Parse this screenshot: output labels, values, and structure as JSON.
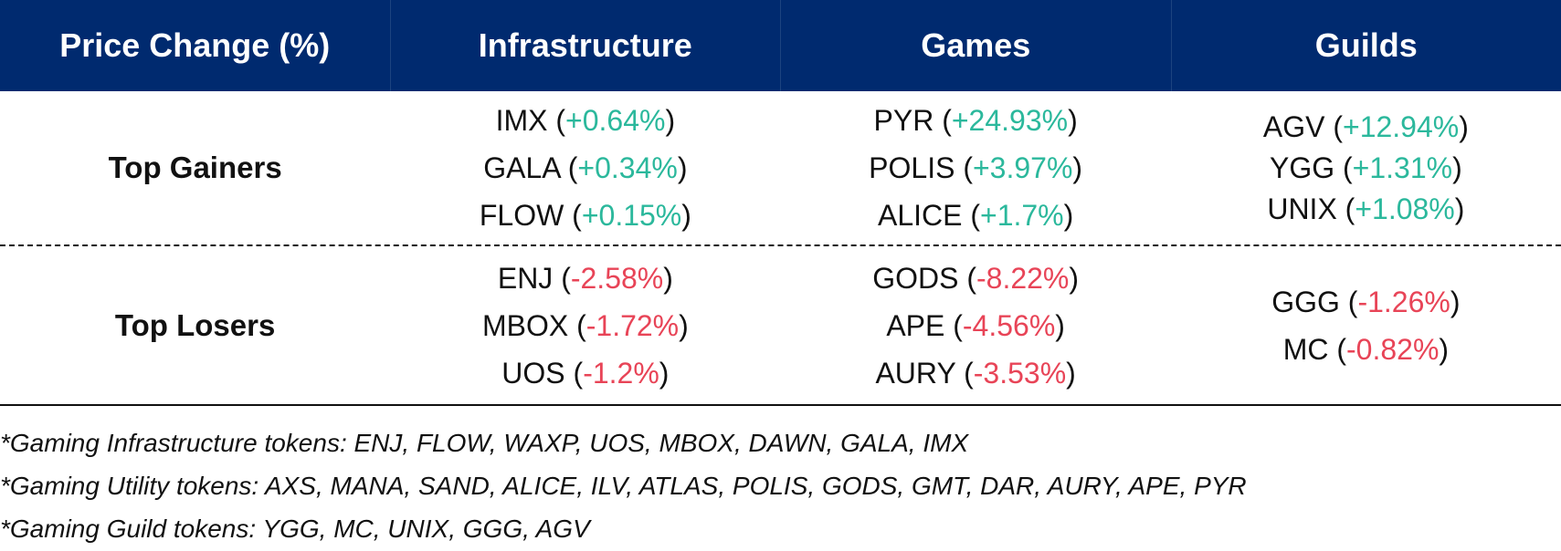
{
  "header": {
    "col0": "Price Change (%)",
    "col1": "Infrastructure",
    "col2": "Games",
    "col3": "Guilds"
  },
  "gainers": {
    "label": "Top Gainers",
    "infrastructure": [
      {
        "token": "IMX",
        "change": "+0.64%"
      },
      {
        "token": "GALA",
        "change": "+0.34%"
      },
      {
        "token": "FLOW",
        "change": "+0.15%"
      }
    ],
    "games": [
      {
        "token": "PYR",
        "change": "+24.93%"
      },
      {
        "token": "POLIS",
        "change": "+3.97%"
      },
      {
        "token": "ALICE",
        "change": "+1.7%"
      }
    ],
    "guilds": [
      {
        "token": "AGV",
        "change": "+12.94%"
      },
      {
        "token": "YGG",
        "change": "+1.31%"
      },
      {
        "token": "UNIX",
        "change": "+1.08%"
      }
    ]
  },
  "losers": {
    "label": "Top Losers",
    "infrastructure": [
      {
        "token": "ENJ",
        "change": "-2.58%"
      },
      {
        "token": "MBOX",
        "change": "-1.72%"
      },
      {
        "token": "UOS",
        "change": "-1.2%"
      }
    ],
    "games": [
      {
        "token": "GODS",
        "change": "-8.22%"
      },
      {
        "token": "APE",
        "change": "-4.56%"
      },
      {
        "token": "AURY",
        "change": "-3.53%"
      }
    ],
    "guilds": [
      {
        "token": "GGG",
        "change": "-1.26%"
      },
      {
        "token": "MC",
        "change": "-0.82%"
      }
    ]
  },
  "notes": [
    "*Gaming Infrastructure tokens: ENJ, FLOW, WAXP, UOS, MBOX, DAWN, GALA, IMX",
    "*Gaming Utility tokens: AXS, MANA, SAND, ALICE, ILV, ATLAS, POLIS, GODS, GMT, DAR, AURY, APE, PYR",
    "*Gaming Guild tokens: YGG, MC, UNIX, GGG, AGV"
  ],
  "colors": {
    "header_bg": "#002a6f",
    "positive": "#2bb89c",
    "negative": "#e84457"
  }
}
